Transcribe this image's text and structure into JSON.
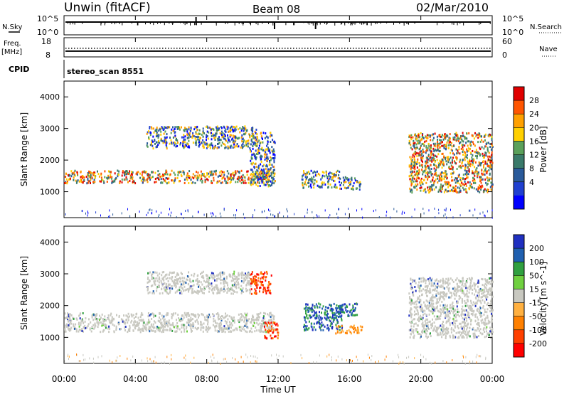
{
  "header": {
    "station": "Unwin (fitACF)",
    "beam": "Beam 08",
    "date": "02/Mar/2010",
    "cpid_label": "CPID",
    "cpid_value": "stereo_scan 8551"
  },
  "chart_data": [
    {
      "type": "line",
      "name": "noise-panel",
      "left_label": "N.Sky",
      "right_label": "N.Search",
      "yscale": "log",
      "left_ticks": [
        "10^5",
        "10^0"
      ],
      "right_ticks": [
        "10^5",
        "10^0"
      ]
    },
    {
      "type": "line",
      "name": "frequency-panel",
      "left_label": "Freq.",
      "left_unit": "[MHz]",
      "right_label": "Nave",
      "left_ticks": [
        "18",
        "8"
      ],
      "right_ticks": [
        "60",
        "0"
      ],
      "left_ylim": [
        8,
        18
      ],
      "right_ylim": [
        0,
        60
      ],
      "freq_value": 11,
      "nave_value": 27
    },
    {
      "type": "heatmap",
      "name": "power-panel",
      "ylabel": "Slant Range [km]",
      "yticks": [
        "4000",
        "3000",
        "2000",
        "1000"
      ],
      "ylim": [
        180,
        4500
      ],
      "colorbar_label": "Power [dB]",
      "colorbar_ticks": [
        "28",
        "24",
        "20",
        "16",
        "12",
        "8",
        "4"
      ],
      "colorbar_colors": [
        "#e00000",
        "#ff5500",
        "#ffa000",
        "#ffd000",
        "#5aa05a",
        "#3a7a6a",
        "#2a5a9a",
        "#2040d0",
        "#0000ff"
      ],
      "regions": [
        {
          "t": [
            0.0,
            11.8
          ],
          "r": [
            1300,
            1700
          ],
          "kind": "band"
        },
        {
          "t": [
            4.6,
            10.8
          ],
          "r": [
            2400,
            3100
          ],
          "kind": "layer"
        },
        {
          "t": [
            10.4,
            11.8
          ],
          "r": [
            1200,
            2900
          ],
          "kind": "patch"
        },
        {
          "t": [
            13.3,
            15.4
          ],
          "r": [
            1150,
            1700
          ],
          "kind": "patch"
        },
        {
          "t": [
            15.4,
            16.6
          ],
          "r": [
            1100,
            1500
          ],
          "kind": "patch"
        },
        {
          "t": [
            19.3,
            24.0
          ],
          "r": [
            1000,
            2900
          ],
          "kind": "band"
        }
      ]
    },
    {
      "type": "heatmap",
      "name": "velocity-panel",
      "ylabel": "Slant Range [km]",
      "yticks": [
        "4000",
        "3000",
        "2000",
        "1000"
      ],
      "ylim": [
        180,
        4500
      ],
      "colorbar_label": "Velocity [m s^-1]",
      "colorbar_ticks": [
        "200",
        "100",
        "50",
        "15",
        "-15",
        "-50",
        "-100",
        "-200"
      ],
      "colorbar_colors": [
        "#2030c0",
        "#2060b0",
        "#30a040",
        "#70d040",
        "#c8c8c0",
        "#ffb040",
        "#ff8000",
        "#ff4000",
        "#ff0000"
      ],
      "regions": [
        {
          "t": [
            0.0,
            11.8
          ],
          "r": [
            1200,
            1800
          ],
          "color": "ground-scatter"
        },
        {
          "t": [
            4.6,
            10.5
          ],
          "r": [
            2400,
            3100
          ],
          "color": "ground-scatter"
        },
        {
          "t": [
            10.4,
            11.6
          ],
          "r": [
            2400,
            3100
          ],
          "color": "negative"
        },
        {
          "t": [
            11.2,
            12.0
          ],
          "r": [
            1000,
            1500
          ],
          "color": "negative"
        },
        {
          "t": [
            13.4,
            15.6
          ],
          "r": [
            1250,
            2100
          ],
          "color": "positive"
        },
        {
          "t": [
            15.2,
            16.4
          ],
          "r": [
            1700,
            2100
          ],
          "color": "positive"
        },
        {
          "t": [
            15.2,
            16.7
          ],
          "r": [
            1150,
            1400
          ],
          "color": "orange"
        },
        {
          "t": [
            19.3,
            24.0
          ],
          "r": [
            1000,
            2900
          ],
          "color": "ground-scatter"
        }
      ]
    }
  ],
  "xaxis": {
    "label": "Time UT",
    "ticks": [
      "00:00",
      "04:00",
      "08:00",
      "12:00",
      "16:00",
      "20:00",
      "00:00"
    ],
    "range_hours": [
      0,
      24
    ]
  }
}
